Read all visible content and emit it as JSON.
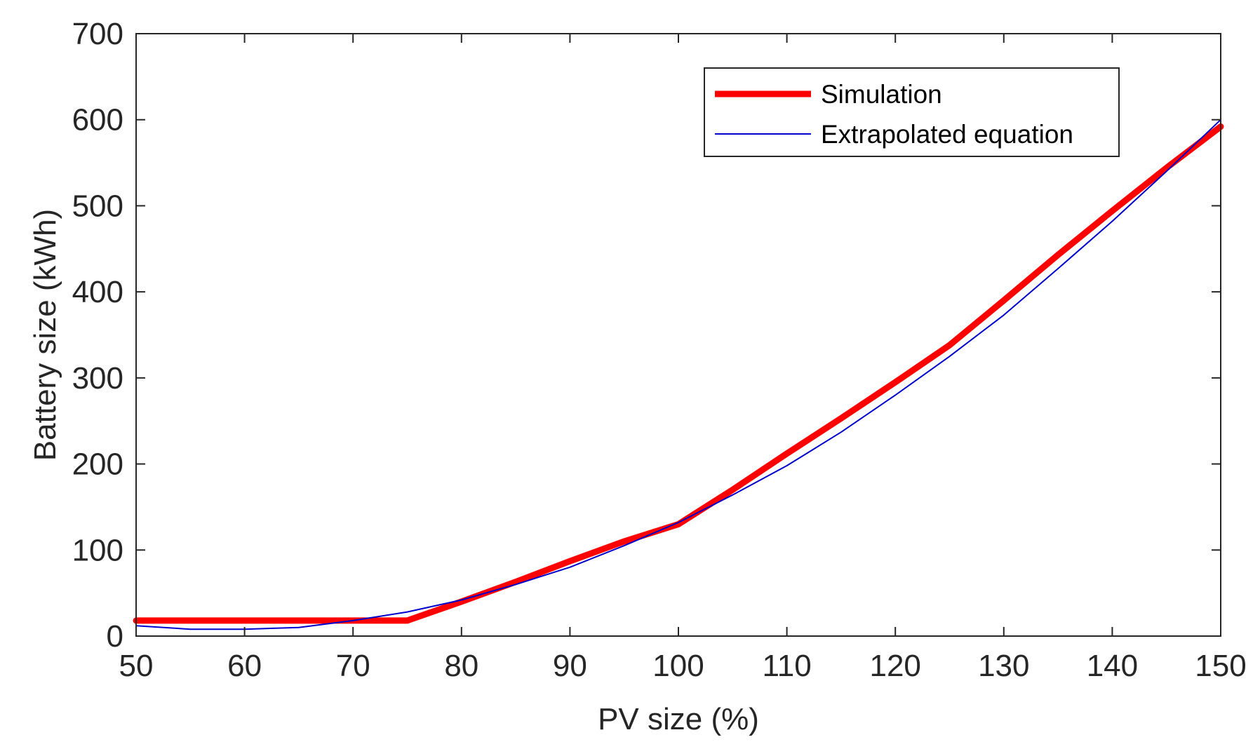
{
  "chart_data": {
    "type": "line",
    "title": "",
    "xlabel": "PV size (%)",
    "ylabel": "Battery size (kWh)",
    "xlim": [
      50,
      150
    ],
    "ylim": [
      0,
      700
    ],
    "xticks": [
      50,
      60,
      70,
      80,
      90,
      100,
      110,
      120,
      130,
      140,
      150
    ],
    "yticks": [
      0,
      100,
      200,
      300,
      400,
      500,
      600,
      700
    ],
    "grid": false,
    "legend_position": "top-right",
    "series": [
      {
        "name": "Simulation",
        "color": "#ff0000",
        "style": "thick-solid",
        "x": [
          50,
          55,
          60,
          65,
          70,
          75,
          80,
          85,
          90,
          95,
          100,
          105,
          110,
          115,
          120,
          125,
          130,
          135,
          140,
          145,
          150
        ],
        "y": [
          18,
          18,
          18,
          18,
          18,
          18,
          40,
          63,
          87,
          110,
          130,
          170,
          212,
          253,
          295,
          338,
          390,
          443,
          494,
          544,
          592
        ]
      },
      {
        "name": "Extrapolated equation",
        "color": "#0000cc",
        "style": "thin-solid",
        "x": [
          50,
          55,
          60,
          65,
          70,
          75,
          80,
          85,
          90,
          95,
          100,
          105,
          110,
          115,
          120,
          125,
          130,
          135,
          140,
          145,
          150
        ],
        "y": [
          12,
          8,
          8,
          10,
          18,
          28,
          42,
          60,
          80,
          105,
          132,
          164,
          198,
          237,
          280,
          325,
          373,
          427,
          482,
          540,
          600
        ]
      }
    ]
  }
}
